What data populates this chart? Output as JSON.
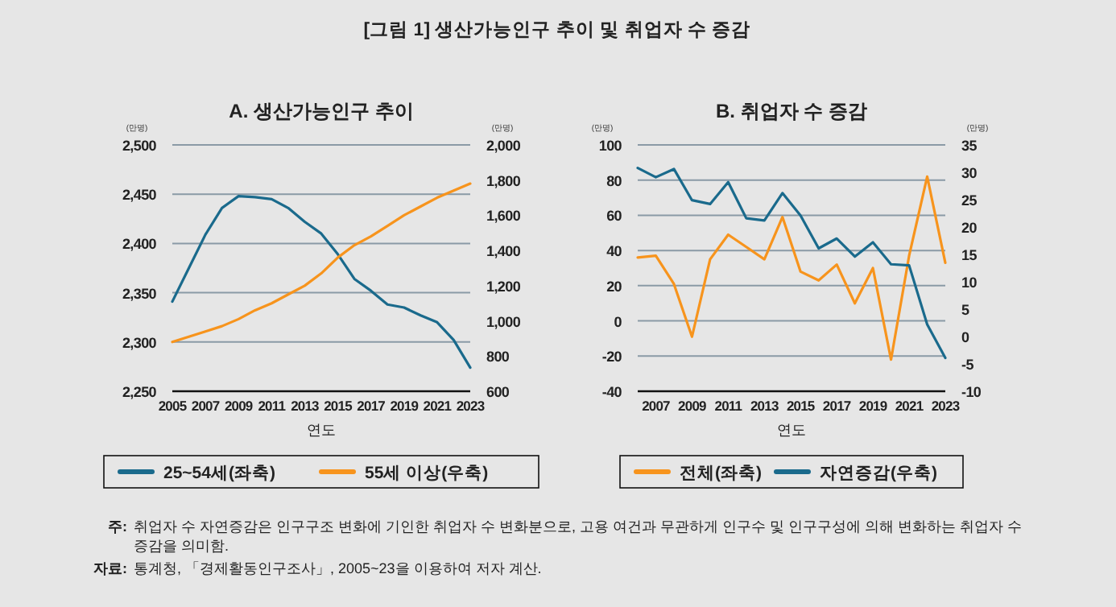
{
  "chart_data": [
    {
      "type": "line",
      "title": "A. 생산가능인구 추이",
      "xlabel": "연도",
      "ylabel": "(만명)",
      "y2label": "(만명)",
      "annotations": [
        "[그림 1] 생산가능인구 추이 및 취업자 수 증감"
      ],
      "x": [
        2005,
        2006,
        2007,
        2008,
        2009,
        2010,
        2011,
        2012,
        2013,
        2014,
        2015,
        2016,
        2017,
        2018,
        2019,
        2020,
        2021,
        2022,
        2023
      ],
      "xlim": [
        2005,
        2023
      ],
      "xticks": [
        2005,
        2007,
        2009,
        2011,
        2013,
        2015,
        2017,
        2019,
        2021,
        2023
      ],
      "ylim": [
        2250,
        2500
      ],
      "yticks": [
        {
          "value": 2250,
          "label": "2,250"
        },
        {
          "value": 2300,
          "label": "2,300"
        },
        {
          "value": 2350,
          "label": "2,350"
        },
        {
          "value": 2400,
          "label": "2,400"
        },
        {
          "value": 2450,
          "label": "2,450"
        },
        {
          "value": 2500,
          "label": "2,500"
        }
      ],
      "y2lim": [
        600,
        2000
      ],
      "y2ticks": [
        600,
        800,
        {
          "value": 1000,
          "label": "1,000"
        },
        {
          "value": 1200,
          "label": "1,200"
        },
        {
          "value": 1400,
          "label": "1,400"
        },
        {
          "value": 1600,
          "label": "1,600"
        },
        {
          "value": 1800,
          "label": "1,800"
        },
        {
          "value": 2000,
          "label": "2,000"
        }
      ],
      "grid": "y",
      "legend": "bottom",
      "marker": "none",
      "line_style": "solid",
      "series": [
        {
          "name": "25~54세(좌축)",
          "color": "#1a6a8c",
          "values": [
            2341,
            2375,
            2409,
            2436,
            2448,
            2447,
            2445,
            2436,
            2422,
            2410,
            2389,
            2364,
            2352,
            2338,
            2335,
            2327,
            2320,
            2302,
            2274
          ]
        },
        {
          "name": "55세 이상(우축)",
          "color": "#f7941d",
          "axis": "y2",
          "values": [
            880,
            910,
            940,
            970,
            1010,
            1060,
            1100,
            1150,
            1200,
            1270,
            1360,
            1430,
            1480,
            1540,
            1600,
            1650,
            1700,
            1740,
            1780
          ]
        }
      ]
    },
    {
      "type": "line",
      "title": "B. 취업자 수 증감",
      "xlabel": "연도",
      "ylabel": "(만명)",
      "y2label": "(만명)",
      "annotations": [
        "주: 취업자 수 자연증감은 인구구조 변화에 기인한 취업자 수 변화분으로, 고용 여건과 무관하게 인구수 및 인구구성에 의해 변화하는 취업자 수 증감을 의미함.",
        "자료: 통계청, 「경제활동인구조사」, 2005~23을 이용하여 저자 계산."
      ],
      "x": [
        2006,
        2007,
        2008,
        2009,
        2010,
        2011,
        2012,
        2013,
        2014,
        2015,
        2016,
        2017,
        2018,
        2019,
        2020,
        2021,
        2022,
        2023
      ],
      "xlim": [
        2006,
        2023
      ],
      "xticks": [
        2007,
        2009,
        2011,
        2013,
        2015,
        2017,
        2019,
        2021,
        2023
      ],
      "ylim": [
        -40,
        100
      ],
      "yticks": [
        -40,
        -20,
        0,
        20,
        40,
        60,
        80,
        100
      ],
      "y2lim": [
        -10,
        35
      ],
      "y2ticks": [
        -10,
        -5,
        0,
        5,
        10,
        15,
        20,
        25,
        30,
        35
      ],
      "grid": "y",
      "legend": "bottom",
      "marker": "none",
      "line_style": "solid",
      "series": [
        {
          "name": "전체(좌축)",
          "color": "#f7941d",
          "values": [
            36,
            37,
            21,
            -9,
            35,
            49,
            42,
            35,
            59,
            28,
            23,
            32,
            10,
            30,
            -22,
            37,
            82,
            33
          ]
        },
        {
          "name": "자연증감(우축)",
          "color": "#1a6a8c",
          "axis": "y2",
          "values": [
            30.8,
            29.1,
            30.6,
            24.9,
            24.2,
            28.2,
            21.6,
            21.2,
            26.2,
            22.1,
            16.1,
            17.9,
            14.6,
            17.2,
            13.2,
            13.0,
            2.2,
            -3.9
          ]
        }
      ]
    }
  ]
}
